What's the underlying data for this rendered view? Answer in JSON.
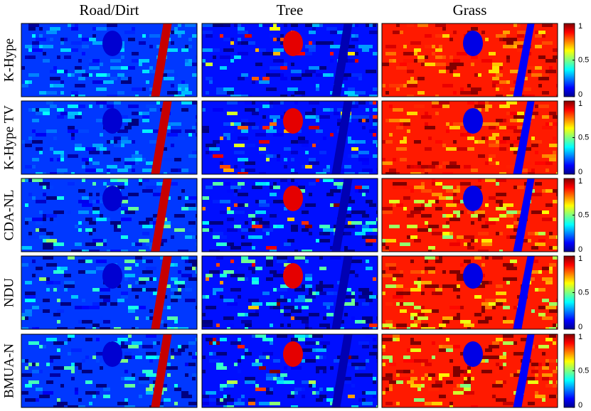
{
  "columns": [
    "Road/Dirt",
    "Tree",
    "Grass"
  ],
  "rows": [
    "K-Hype",
    "K-Hype TV",
    "CDA-NL",
    "NDU",
    "BMUA-N"
  ],
  "colorbar": {
    "clim": [
      0,
      1
    ],
    "ticks": [
      0,
      0.5,
      1
    ]
  }
}
